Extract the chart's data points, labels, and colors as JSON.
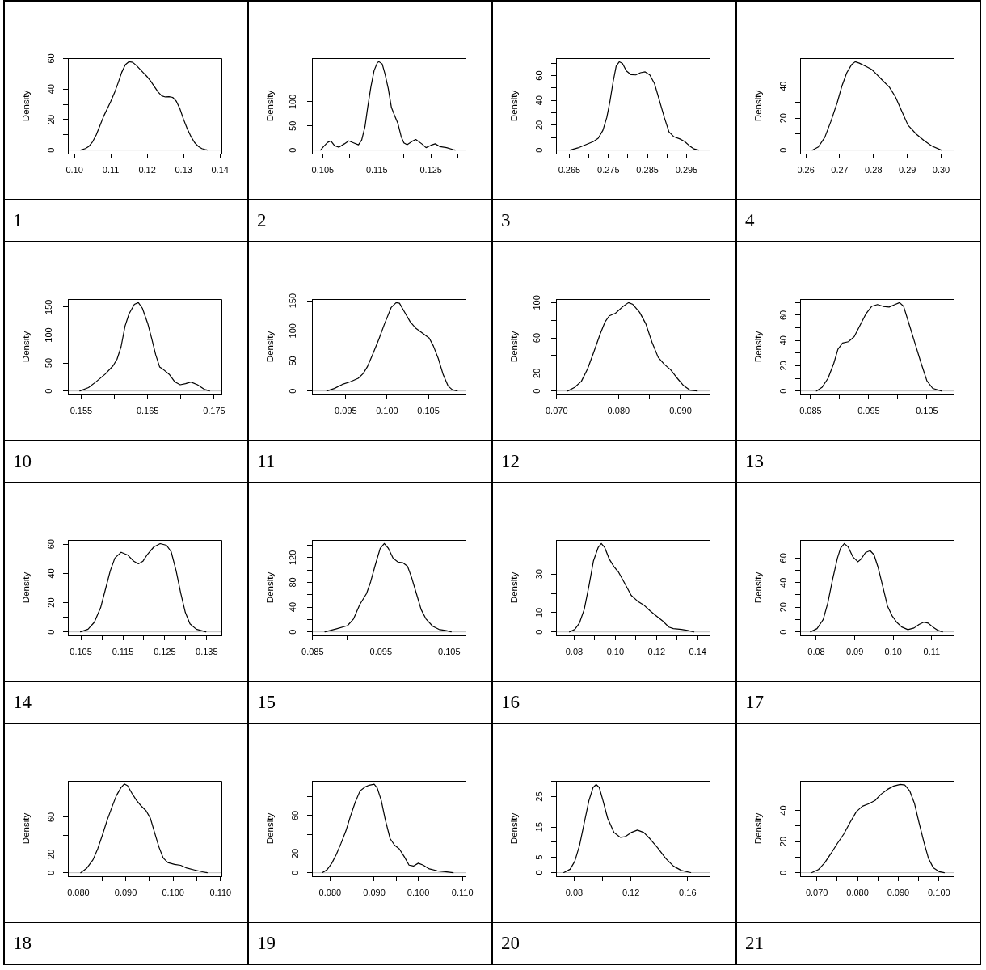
{
  "chart_data": [
    {
      "type": "line",
      "ylabel": "Density",
      "x": [
        0.1017,
        0.103,
        0.104,
        0.105,
        0.106,
        0.107,
        0.108,
        0.109,
        0.11,
        0.111,
        0.112,
        0.113,
        0.114,
        0.115,
        0.116,
        0.117,
        0.118,
        0.119,
        0.12,
        0.121,
        0.122,
        0.123,
        0.124,
        0.125,
        0.126,
        0.127,
        0.128,
        0.129,
        0.13,
        0.131,
        0.132,
        0.133,
        0.134,
        0.135,
        0.1365
      ],
      "values": [
        0,
        1,
        2.5,
        5.5,
        10,
        16,
        22,
        27,
        32,
        37.5,
        44,
        51,
        56,
        57.9,
        57.5,
        55.5,
        53,
        50.5,
        48,
        45,
        41.5,
        38,
        35.5,
        34.8,
        35,
        34.5,
        32,
        27,
        20,
        14,
        9,
        5,
        2.5,
        1,
        0
      ],
      "color": "#000000",
      "xlim": [
        0.0982,
        0.1404
      ],
      "ylim": [
        -2.3,
        60.2
      ],
      "xticks": [
        {
          "value": 0.1,
          "label": "0.10"
        },
        0.11,
        0.12,
        0.13,
        0.14
      ],
      "yticks": [
        0,
        {
          "value": 10,
          "label": null
        },
        20,
        {
          "value": 30,
          "label": null
        },
        40,
        {
          "value": 50,
          "label": null
        },
        60
      ],
      "ref_lines": [
        {
          "axis": "y",
          "value": 0,
          "color": "#bebebe"
        }
      ],
      "annotations": [
        "1"
      ]
    },
    {
      "type": "line",
      "ylabel": "Density",
      "x": [
        0.1046,
        0.1052,
        0.1059,
        0.1065,
        0.1072,
        0.108,
        0.109,
        0.1098,
        0.1107,
        0.1116,
        0.1122,
        0.1128,
        0.1133,
        0.1139,
        0.1145,
        0.1151,
        0.1154,
        0.116,
        0.1165,
        0.1171,
        0.1177,
        0.1183,
        0.1189,
        0.1195,
        0.12,
        0.1206,
        0.1215,
        0.1222,
        0.1233,
        0.1241,
        0.125,
        0.1258,
        0.1267,
        0.1279,
        0.1291,
        0.1295
      ],
      "values": [
        0,
        8,
        16,
        19,
        9,
        6,
        13,
        19,
        15,
        11,
        21,
        48,
        88,
        131,
        165,
        181,
        183,
        178,
        158,
        128,
        88,
        71,
        55,
        28,
        15,
        11,
        18,
        22,
        13,
        5,
        10,
        13,
        7,
        5,
        1,
        0
      ],
      "color": "#000000",
      "xlim": [
        0.103,
        0.1314
      ],
      "ylim": [
        -7.3,
        190.3
      ],
      "xticks": [
        0.105,
        {
          "value": 0.11,
          "label": null
        },
        0.115,
        {
          "value": 0.12,
          "label": null
        },
        0.125,
        {
          "value": 0.13,
          "label": null
        }
      ],
      "yticks": [
        0,
        50,
        100,
        {
          "value": 150,
          "label": null
        }
      ],
      "ref_lines": [
        {
          "axis": "y",
          "value": 0,
          "color": "#bebebe"
        }
      ],
      "annotations": [
        "2"
      ]
    },
    {
      "type": "line",
      "ylabel": "Density",
      "x": [
        0.2652,
        0.2672,
        0.2692,
        0.2712,
        0.2724,
        0.2736,
        0.2746,
        0.2754,
        0.2762,
        0.277,
        0.2778,
        0.2786,
        0.2796,
        0.2808,
        0.282,
        0.2832,
        0.2844,
        0.2856,
        0.2868,
        0.288,
        0.2893,
        0.2905,
        0.2917,
        0.2933,
        0.2945,
        0.2957,
        0.2969,
        0.2981
      ],
      "values": [
        0,
        1.8,
        4.4,
        7,
        9.6,
        16,
        26.4,
        39.3,
        54.8,
        67.7,
        71.1,
        69.8,
        63.8,
        60.7,
        60.5,
        62.3,
        63,
        60.5,
        53.5,
        40.6,
        26.4,
        14.7,
        10.9,
        9,
        7,
        3.6,
        1,
        0
      ],
      "color": "#000000",
      "xlim": [
        0.2616,
        0.3009
      ],
      "ylim": [
        -2.8,
        74.0
      ],
      "xticks": [
        0.265,
        {
          "value": 0.27,
          "label": null
        },
        0.275,
        {
          "value": 0.28,
          "label": null
        },
        0.285,
        {
          "value": 0.29,
          "label": null
        },
        0.295,
        {
          "value": 0.3,
          "label": null
        }
      ],
      "yticks": [
        0,
        {
          "value": 10,
          "label": null
        },
        20,
        {
          "value": 30,
          "label": null
        },
        40,
        {
          "value": 50,
          "label": null
        },
        60,
        {
          "value": 70,
          "label": null
        }
      ],
      "ref_lines": [
        {
          "axis": "y",
          "value": 0,
          "color": "#bebebe"
        }
      ],
      "annotations": [
        "3"
      ]
    },
    {
      "type": "line",
      "ylabel": "Density",
      "x": [
        0.2619,
        0.2637,
        0.2656,
        0.2674,
        0.2693,
        0.2707,
        0.2721,
        0.2735,
        0.2746,
        0.2758,
        0.2777,
        0.2795,
        0.2809,
        0.2828,
        0.2847,
        0.2865,
        0.2884,
        0.2902,
        0.2926,
        0.2949,
        0.2972,
        0.3
      ],
      "values": [
        0,
        2,
        8,
        18,
        30,
        40.4,
        48.5,
        53.5,
        55.4,
        54.5,
        52.5,
        50.5,
        47.5,
        43.4,
        39.4,
        33.3,
        24.2,
        15.6,
        10.1,
        6,
        2.6,
        0
      ],
      "color": "#000000",
      "xlim": [
        0.2583,
        0.3037
      ],
      "ylim": [
        -2.2,
        57.6
      ],
      "xticks": [
        0.26,
        0.27,
        0.28,
        0.29,
        {
          "value": 0.3,
          "label": "0.30"
        }
      ],
      "yticks": [
        0,
        {
          "value": 10,
          "label": null
        },
        20,
        {
          "value": 30,
          "label": null
        },
        40,
        {
          "value": 50,
          "label": null
        }
      ],
      "ref_lines": [
        {
          "axis": "y",
          "value": 0,
          "color": "#bebebe"
        }
      ],
      "annotations": [
        "4"
      ]
    },
    {
      "type": "line",
      "ylabel": "Density",
      "x": [
        0.1548,
        0.1561,
        0.1573,
        0.1586,
        0.1598,
        0.1604,
        0.161,
        0.1616,
        0.1622,
        0.163,
        0.1636,
        0.1642,
        0.165,
        0.1656,
        0.1662,
        0.1668,
        0.1674,
        0.1683,
        0.1691,
        0.1699,
        0.1707,
        0.1715,
        0.1725,
        0.1735,
        0.1743
      ],
      "values": [
        0,
        6,
        17,
        30,
        45,
        57,
        79,
        116,
        138,
        155,
        158,
        148,
        121,
        94,
        65,
        43,
        38,
        29,
        16,
        11,
        13,
        16,
        11,
        3,
        0
      ],
      "color": "#000000",
      "xlim": [
        0.153,
        0.1761
      ],
      "ylim": [
        -6.3,
        164.3
      ],
      "xticks": [
        0.155,
        {
          "value": 0.16,
          "label": null
        },
        0.165,
        {
          "value": 0.17,
          "label": null
        },
        0.175
      ],
      "yticks": [
        0,
        50,
        100,
        150
      ],
      "ref_lines": [
        {
          "axis": "y",
          "value": 0,
          "color": "#bebebe"
        }
      ],
      "annotations": [
        "10"
      ]
    },
    {
      "type": "line",
      "ylabel": "Density",
      "x": [
        0.0927,
        0.0936,
        0.0946,
        0.0955,
        0.0965,
        0.0971,
        0.0976,
        0.0982,
        0.099,
        0.0997,
        0.1005,
        0.1011,
        0.1015,
        0.102,
        0.1028,
        0.1035,
        0.1043,
        0.1051,
        0.1056,
        0.1062,
        0.1068,
        0.1074,
        0.1079,
        0.1085
      ],
      "values": [
        0,
        4,
        11,
        15,
        21,
        29,
        40,
        59,
        86,
        112,
        139,
        147,
        146,
        134,
        115,
        104,
        96,
        88,
        75,
        54,
        27,
        8,
        2,
        0
      ],
      "color": "#000000",
      "xlim": [
        0.0909,
        0.1095
      ],
      "ylim": [
        -5.9,
        152.9
      ],
      "xticks": [
        0.095,
        {
          "value": 0.1,
          "label": "0.100"
        },
        0.105
      ],
      "yticks": [
        0,
        50,
        100,
        150
      ],
      "ref_lines": [
        {
          "axis": "y",
          "value": 0,
          "color": "#bebebe"
        }
      ],
      "annotations": [
        "11"
      ]
    },
    {
      "type": "line",
      "ylabel": "Density",
      "x": [
        0.0718,
        0.0729,
        0.074,
        0.075,
        0.076,
        0.077,
        0.0778,
        0.0785,
        0.0795,
        0.0806,
        0.0816,
        0.0823,
        0.0834,
        0.0844,
        0.0854,
        0.0864,
        0.0874,
        0.0884,
        0.0894,
        0.0905,
        0.0915,
        0.0927
      ],
      "values": [
        0,
        4,
        11,
        25,
        44,
        64,
        78,
        85,
        88,
        95,
        100,
        98,
        89,
        76,
        55,
        38,
        30,
        24,
        15,
        6,
        1,
        0
      ],
      "color": "#000000",
      "xlim": [
        0.0699,
        0.0947
      ],
      "ylim": [
        -4,
        104
      ],
      "xticks": [
        {
          "value": 0.07,
          "label": "0.070"
        },
        {
          "value": 0.075,
          "label": null
        },
        {
          "value": 0.08,
          "label": "0.080"
        },
        {
          "value": 0.085,
          "label": null
        },
        {
          "value": 0.09,
          "label": "0.090"
        }
      ],
      "yticks": [
        0,
        20,
        {
          "value": 40,
          "label": null
        },
        60,
        {
          "value": 80,
          "label": null
        },
        100
      ],
      "ref_lines": [
        {
          "axis": "y",
          "value": 0,
          "color": "#bebebe"
        }
      ],
      "annotations": [
        "12"
      ]
    },
    {
      "type": "line",
      "ylabel": "Density",
      "x": [
        0.086,
        0.087,
        0.088,
        0.089,
        0.0897,
        0.0905,
        0.0915,
        0.0925,
        0.0935,
        0.0945,
        0.0955,
        0.0965,
        0.0975,
        0.0985,
        0.0995,
        0.1003,
        0.101,
        0.102,
        0.103,
        0.104,
        0.105,
        0.106,
        0.1075
      ],
      "values": [
        0,
        3,
        10,
        22,
        33,
        38,
        39,
        43,
        52,
        61,
        67,
        68.5,
        67,
        66.5,
        68.5,
        70,
        67,
        52,
        37,
        22,
        8,
        2,
        0
      ],
      "color": "#000000",
      "xlim": [
        0.0832,
        0.1096
      ],
      "ylim": [
        -2.8,
        72.8
      ],
      "xticks": [
        0.085,
        {
          "value": 0.09,
          "label": null
        },
        0.095,
        {
          "value": 0.1,
          "label": null
        },
        0.105
      ],
      "yticks": [
        0,
        {
          "value": 10,
          "label": null
        },
        20,
        {
          "value": 30,
          "label": null
        },
        40,
        {
          "value": 50,
          "label": null
        },
        60,
        {
          "value": 70,
          "label": null
        }
      ],
      "ref_lines": [
        {
          "axis": "y",
          "value": 0,
          "color": "#bebebe"
        }
      ],
      "annotations": [
        "13"
      ]
    },
    {
      "type": "line",
      "ylabel": "Density",
      "x": [
        0.1049,
        0.1067,
        0.1082,
        0.1097,
        0.1108,
        0.112,
        0.1131,
        0.1146,
        0.1161,
        0.1176,
        0.1187,
        0.1198,
        0.1209,
        0.1224,
        0.1239,
        0.1254,
        0.1265,
        0.1277,
        0.1288,
        0.1299,
        0.131,
        0.1325,
        0.1348
      ],
      "values": [
        0,
        1.8,
        6.6,
        16.5,
        28.6,
        41.8,
        50.5,
        54.5,
        52.7,
        48.4,
        46.6,
        48.4,
        53.2,
        58.2,
        60.4,
        59.3,
        55,
        41.8,
        26.4,
        13.2,
        5.5,
        1.8,
        0
      ],
      "color": "#000000",
      "xlim": [
        0.1019,
        0.1385
      ],
      "ylim": [
        -2.4,
        62.9
      ],
      "xticks": [
        0.105,
        {
          "value": 0.11,
          "label": null
        },
        0.115,
        {
          "value": 0.12,
          "label": null
        },
        0.125,
        {
          "value": 0.13,
          "label": null
        },
        0.135
      ],
      "yticks": [
        0,
        {
          "value": 10,
          "label": null
        },
        20,
        {
          "value": 30,
          "label": null
        },
        40,
        {
          "value": 50,
          "label": null
        },
        60
      ],
      "ref_lines": [
        {
          "axis": "y",
          "value": 0,
          "color": "#bebebe"
        }
      ],
      "annotations": [
        "14"
      ]
    },
    {
      "type": "line",
      "ylabel": "Density",
      "x": [
        0.0868,
        0.0885,
        0.0901,
        0.091,
        0.0919,
        0.0929,
        0.0935,
        0.0942,
        0.0949,
        0.0955,
        0.0961,
        0.0968,
        0.0975,
        0.0982,
        0.0989,
        0.0995,
        0.1002,
        0.1009,
        0.1016,
        0.1026,
        0.1035,
        0.1046,
        0.1053
      ],
      "values": [
        0,
        5,
        10,
        21,
        44,
        62,
        81,
        109,
        135,
        143,
        135,
        119,
        113,
        112,
        106,
        88,
        62,
        36,
        21,
        9,
        4,
        2,
        0
      ],
      "color": "#000000",
      "xlim": [
        0.0849,
        0.1074
      ],
      "ylim": [
        -5.7,
        148.6
      ],
      "xticks": [
        0.085,
        {
          "value": 0.09,
          "label": null
        },
        0.095,
        {
          "value": 0.1,
          "label": null
        },
        0.105
      ],
      "yticks": [
        0,
        {
          "value": 20,
          "label": null
        },
        40,
        {
          "value": 60,
          "label": null
        },
        80,
        {
          "value": 100,
          "label": null
        },
        120,
        {
          "value": 140,
          "label": null
        }
      ],
      "ref_lines": [
        {
          "axis": "y",
          "value": 0,
          "color": "#bebebe"
        }
      ],
      "annotations": [
        "15"
      ]
    },
    {
      "type": "line",
      "ylabel": "Density",
      "x": [
        0.0777,
        0.0803,
        0.0826,
        0.0849,
        0.0872,
        0.0894,
        0.0917,
        0.0932,
        0.0948,
        0.097,
        0.0993,
        0.1016,
        0.1047,
        0.1077,
        0.1108,
        0.1138,
        0.1168,
        0.1199,
        0.1229,
        0.126,
        0.1282,
        0.1321,
        0.1351,
        0.1382
      ],
      "values": [
        0,
        1.3,
        4.7,
        11.7,
        24,
        37,
        44,
        46,
        44,
        38,
        34,
        31,
        25,
        19,
        16,
        14,
        11,
        8.3,
        5.8,
        2.5,
        1.7,
        1.3,
        0.8,
        0
      ],
      "color": "#000000",
      "xlim": [
        0.0712,
        0.1458
      ],
      "ylim": [
        -1.8,
        47.8
      ],
      "xticks": [
        0.08,
        {
          "value": 0.09,
          "label": null
        },
        {
          "value": 0.1,
          "label": "0.10"
        },
        {
          "value": 0.11,
          "label": null
        },
        0.12,
        {
          "value": 0.13,
          "label": null
        },
        0.14
      ],
      "yticks": [
        0,
        10,
        {
          "value": 20,
          "label": null
        },
        30,
        {
          "value": 40,
          "label": null
        }
      ],
      "ref_lines": [
        {
          "axis": "y",
          "value": 0,
          "color": "#bebebe"
        }
      ],
      "annotations": [
        "16"
      ]
    },
    {
      "type": "line",
      "ylabel": "Density",
      "x": [
        0.0785,
        0.0802,
        0.0818,
        0.083,
        0.0842,
        0.0855,
        0.0863,
        0.0873,
        0.0883,
        0.0895,
        0.0908,
        0.0916,
        0.0928,
        0.094,
        0.095,
        0.0961,
        0.0973,
        0.0985,
        0.0997,
        0.1009,
        0.1022,
        0.1038,
        0.1054,
        0.1067,
        0.1079,
        0.1091,
        0.1103,
        0.1115,
        0.1128
      ],
      "values": [
        0,
        2.6,
        10,
        23.5,
        42,
        60,
        68,
        71.8,
        69,
        61,
        57,
        59,
        64.5,
        66,
        62.7,
        52,
        36.6,
        21,
        13,
        7.8,
        3.9,
        1.8,
        3.1,
        6,
        7.8,
        7,
        3.9,
        1.3,
        0
      ],
      "color": "#000000",
      "xlim": [
        0.0758,
        0.1157
      ],
      "ylim": [
        -2.9,
        74.7
      ],
      "xticks": [
        0.08,
        0.09,
        {
          "value": 0.1,
          "label": "0.10"
        },
        0.11
      ],
      "yticks": [
        0,
        {
          "value": 10,
          "label": null
        },
        20,
        {
          "value": 30,
          "label": null
        },
        40,
        {
          "value": 50,
          "label": null
        },
        60,
        {
          "value": 70,
          "label": null
        }
      ],
      "ref_lines": [
        {
          "axis": "y",
          "value": 0,
          "color": "#bebebe"
        }
      ],
      "annotations": [
        "17"
      ]
    },
    {
      "type": "line",
      "ylabel": "Density",
      "x": [
        0.0805,
        0.0818,
        0.0831,
        0.0841,
        0.0851,
        0.0861,
        0.0871,
        0.088,
        0.089,
        0.0897,
        0.0904,
        0.0913,
        0.0923,
        0.0933,
        0.0943,
        0.0952,
        0.096,
        0.097,
        0.0979,
        0.0989,
        0.1003,
        0.1016,
        0.1029,
        0.1045,
        0.1062,
        0.1072
      ],
      "values": [
        0,
        5,
        14,
        26,
        41,
        57,
        71,
        83,
        92,
        96,
        94,
        86,
        78,
        72,
        67,
        59,
        45,
        28,
        16,
        11,
        9,
        8,
        5,
        3,
        1,
        0
      ],
      "color": "#000000",
      "xlim": [
        0.0778,
        0.1102
      ],
      "ylim": [
        -3.8,
        99.3
      ],
      "xticks": [
        {
          "value": 0.08,
          "label": "0.080"
        },
        {
          "value": 0.085,
          "label": null
        },
        {
          "value": 0.09,
          "label": "0.090"
        },
        {
          "value": 0.095,
          "label": null
        },
        {
          "value": 0.1,
          "label": "0.100"
        },
        {
          "value": 0.105,
          "label": null
        },
        {
          "value": 0.11,
          "label": "0.110"
        }
      ],
      "yticks": [
        0,
        20,
        {
          "value": 40,
          "label": null
        },
        60,
        {
          "value": 80,
          "label": null
        }
      ],
      "ref_lines": [
        {
          "axis": "y",
          "value": 0,
          "color": "#bebebe"
        }
      ],
      "annotations": [
        "18"
      ]
    },
    {
      "type": "line",
      "ylabel": "Density",
      "x": [
        0.0782,
        0.0793,
        0.0804,
        0.0814,
        0.0825,
        0.0836,
        0.0846,
        0.0857,
        0.0868,
        0.0879,
        0.0889,
        0.09,
        0.0907,
        0.0916,
        0.0925,
        0.0936,
        0.0946,
        0.0957,
        0.0968,
        0.0979,
        0.0989,
        0.1,
        0.1011,
        0.1025,
        0.1043,
        0.1061,
        0.1079
      ],
      "values": [
        0,
        3,
        10,
        19,
        31,
        44,
        59,
        74,
        86,
        90,
        92,
        93,
        89,
        76,
        56,
        36,
        29,
        25,
        17,
        8,
        7,
        10,
        8,
        4,
        2,
        1,
        0
      ],
      "color": "#000000",
      "xlim": [
        0.0759,
        0.1107
      ],
      "ylim": [
        -3.7,
        96.5
      ],
      "xticks": [
        {
          "value": 0.08,
          "label": "0.080"
        },
        {
          "value": 0.085,
          "label": null
        },
        {
          "value": 0.09,
          "label": "0.090"
        },
        {
          "value": 0.095,
          "label": null
        },
        {
          "value": 0.1,
          "label": "0.100"
        },
        {
          "value": 0.105,
          "label": null
        },
        {
          "value": 0.11,
          "label": "0.110"
        }
      ],
      "yticks": [
        0,
        20,
        {
          "value": 40,
          "label": null
        },
        60,
        {
          "value": 80,
          "label": null
        }
      ],
      "ref_lines": [
        {
          "axis": "y",
          "value": 0,
          "color": "#bebebe"
        }
      ],
      "annotations": [
        "19"
      ]
    },
    {
      "type": "line",
      "ylabel": "Density",
      "x": [
        0.0727,
        0.0771,
        0.0804,
        0.0838,
        0.0871,
        0.0904,
        0.0933,
        0.0955,
        0.0977,
        0.1003,
        0.1036,
        0.1081,
        0.1125,
        0.1158,
        0.1202,
        0.1246,
        0.1291,
        0.1335,
        0.139,
        0.1445,
        0.1501,
        0.1556,
        0.1622
      ],
      "values": [
        0,
        1.1,
        3.7,
        9,
        16.4,
        23.7,
        28,
        29,
        28,
        23.7,
        17.9,
        13.2,
        11.6,
        11.8,
        13.2,
        14,
        13.2,
        11.1,
        8.1,
        4.7,
        2.1,
        0.7,
        0
      ],
      "color": "#000000",
      "xlim": [
        0.0672,
        0.1755
      ],
      "ylim": [
        -1.2,
        30.2
      ],
      "xticks": [
        0.08,
        {
          "value": 0.1,
          "label": null
        },
        0.12,
        {
          "value": 0.14,
          "label": null
        },
        0.16
      ],
      "yticks": [
        0,
        5,
        {
          "value": 10,
          "label": null
        },
        15,
        {
          "value": 20,
          "label": null
        },
        25,
        {
          "value": 30,
          "label": null
        }
      ],
      "ref_lines": [
        {
          "axis": "y",
          "value": 0,
          "color": "#bebebe"
        }
      ],
      "annotations": [
        "20"
      ]
    },
    {
      "type": "line",
      "ylabel": "Density",
      "x": [
        0.0688,
        0.0704,
        0.0719,
        0.0735,
        0.075,
        0.0766,
        0.0781,
        0.0797,
        0.0812,
        0.0828,
        0.0843,
        0.0858,
        0.0874,
        0.0889,
        0.0905,
        0.0916,
        0.0928,
        0.094,
        0.0951,
        0.0963,
        0.0974,
        0.0986,
        0.1001,
        0.1013
      ],
      "values": [
        0,
        2,
        6.2,
        12.4,
        18.6,
        24.7,
        32,
        39.2,
        42.7,
        44.3,
        46.4,
        50.5,
        53.6,
        55.7,
        56.7,
        56.3,
        52.6,
        44.3,
        32,
        19.6,
        9.3,
        3.1,
        0.6,
        0
      ],
      "color": "#000000",
      "xlim": [
        0.0659,
        0.1036
      ],
      "ylim": [
        -2.3,
        59.0
      ],
      "xticks": [
        {
          "value": 0.07,
          "label": "0.070"
        },
        {
          "value": 0.075,
          "label": null
        },
        {
          "value": 0.08,
          "label": "0.080"
        },
        {
          "value": 0.085,
          "label": null
        },
        {
          "value": 0.09,
          "label": "0.090"
        },
        {
          "value": 0.095,
          "label": null
        },
        {
          "value": 0.1,
          "label": "0.100"
        }
      ],
      "yticks": [
        0,
        {
          "value": 10,
          "label": null
        },
        20,
        {
          "value": 30,
          "label": null
        },
        40,
        {
          "value": 50,
          "label": null
        }
      ],
      "ref_lines": [
        {
          "axis": "y",
          "value": 0,
          "color": "#bebebe"
        }
      ],
      "annotations": [
        "21"
      ]
    }
  ]
}
